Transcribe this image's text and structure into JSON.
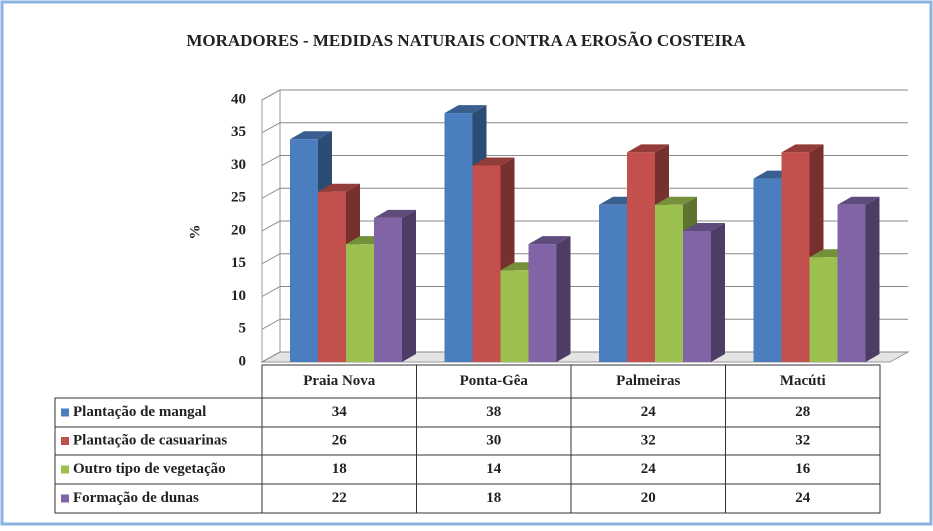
{
  "chart_data": {
    "type": "bar3d",
    "title": "MORADORES - MEDIDAS NATURAIS CONTRA A EROSÃO COSTEIRA",
    "ylabel": "%",
    "categories": [
      "Praia Nova",
      "Ponta-Gêa",
      "Palmeiras",
      "Macúti"
    ],
    "series": [
      {
        "name": "Plantação de mangal",
        "color": "#4a7ebf",
        "values": [
          34,
          38,
          24,
          28
        ]
      },
      {
        "name": "Plantação de casuarinas",
        "color": "#c4504d",
        "values": [
          26,
          30,
          32,
          32
        ]
      },
      {
        "name": "Outro tipo de vegetação",
        "color": "#9bc04f",
        "values": [
          18,
          14,
          24,
          16
        ]
      },
      {
        "name": "Formação de dunas",
        "color": "#8064a6",
        "values": [
          22,
          18,
          20,
          24
        ]
      }
    ],
    "ylim": [
      0,
      40
    ],
    "yticks": [
      0,
      5,
      10,
      15,
      20,
      25,
      30,
      35,
      40
    ],
    "grid": true,
    "data_table": true
  }
}
